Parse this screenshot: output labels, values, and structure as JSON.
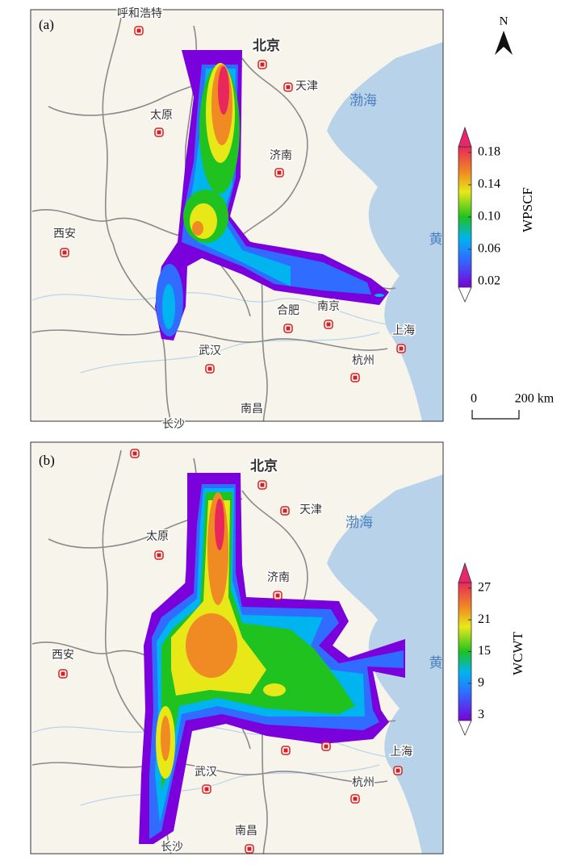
{
  "north": "N",
  "scale_bar": {
    "start": "0",
    "end": "200 km"
  },
  "panel_a": {
    "label": "(a)",
    "places": [
      "呼和浩特",
      "北京",
      "天津",
      "渤海",
      "太原",
      "济南",
      "西安",
      "黄",
      "合肥",
      "南京",
      "上海",
      "武汉",
      "杭州",
      "南昌",
      "长沙"
    ],
    "colorbar": {
      "title": "WPSCF",
      "ticks": [
        {
          "value": 0.02,
          "label": "0.02"
        },
        {
          "value": 0.06,
          "label": "0.06"
        },
        {
          "value": 0.1,
          "label": "0.10"
        },
        {
          "value": 0.14,
          "label": "0.14"
        },
        {
          "value": 0.18,
          "label": "0.18"
        }
      ]
    }
  },
  "panel_b": {
    "label": "(b)",
    "places": [
      "北京",
      "天津",
      "渤海",
      "太原",
      "济南",
      "西安",
      "黄",
      "上海",
      "武汉",
      "杭州",
      "南昌",
      "长沙"
    ],
    "colorbar": {
      "title": "WCWT",
      "ticks": [
        3,
        9,
        15,
        21,
        27
      ]
    }
  }
}
